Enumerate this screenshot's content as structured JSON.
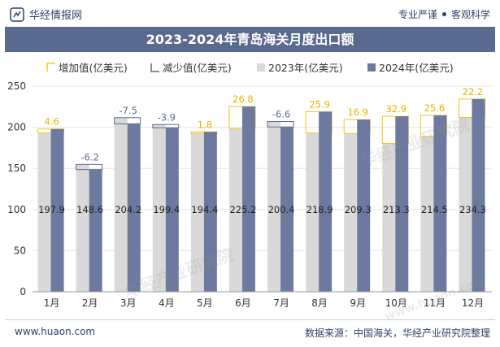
{
  "header": {
    "site_name": "华经情报网",
    "slogan_left": "专业严谨",
    "slogan_right": "客观科学"
  },
  "footer": {
    "url": "www.huaon.com",
    "source": "数据来源：中国海关，华经产业研究院整理"
  },
  "watermark": {
    "text": "华经产业研究院",
    "url": "www.huaon.com"
  },
  "colors": {
    "increase": "#f5c518",
    "decrease": "#5a6a8e",
    "y2023": "#d9d9d9",
    "y2024": "#6b7a9e",
    "title_bg": "#5a6a8e"
  },
  "chart_data": {
    "type": "bar",
    "title": "2023-2024年青岛海关月度出口额",
    "categories": [
      "1月",
      "2月",
      "3月",
      "4月",
      "5月",
      "6月",
      "7月",
      "8月",
      "9月",
      "10月",
      "11月",
      "12月"
    ],
    "series": [
      {
        "name": "2023年(亿美元)",
        "values": [
          193.3,
          154.8,
          211.7,
          203.3,
          192.6,
          198.4,
          207.0,
          193.0,
          192.4,
          180.4,
          188.9,
          212.1
        ]
      },
      {
        "name": "2024年(亿美元)",
        "values": [
          197.9,
          148.6,
          204.2,
          199.4,
          194.4,
          225.2,
          200.4,
          218.9,
          209.3,
          213.3,
          214.5,
          234.3
        ]
      }
    ],
    "change_labels": [
      "4.6",
      "-6.2",
      "-7.5",
      "-3.9",
      "1.8",
      "26.8",
      "-6.6",
      "25.9",
      "16.9",
      "32.9",
      "25.6",
      "22.2"
    ],
    "value_labels": [
      "197.9",
      "148.6",
      "204.2",
      "199.4",
      "194.4",
      "225.2",
      "200.4",
      "218.9",
      "209.3",
      "213.3",
      "214.5",
      "234.3"
    ],
    "legend": [
      "增加值(亿美元)",
      "减少值(亿美元)",
      "2023年(亿美元)",
      "2024年(亿美元)"
    ],
    "y_ticks": [
      "0",
      "50",
      "100",
      "150",
      "200",
      "250"
    ],
    "ylim": [
      0,
      250
    ],
    "xlabel": "",
    "ylabel": ""
  }
}
